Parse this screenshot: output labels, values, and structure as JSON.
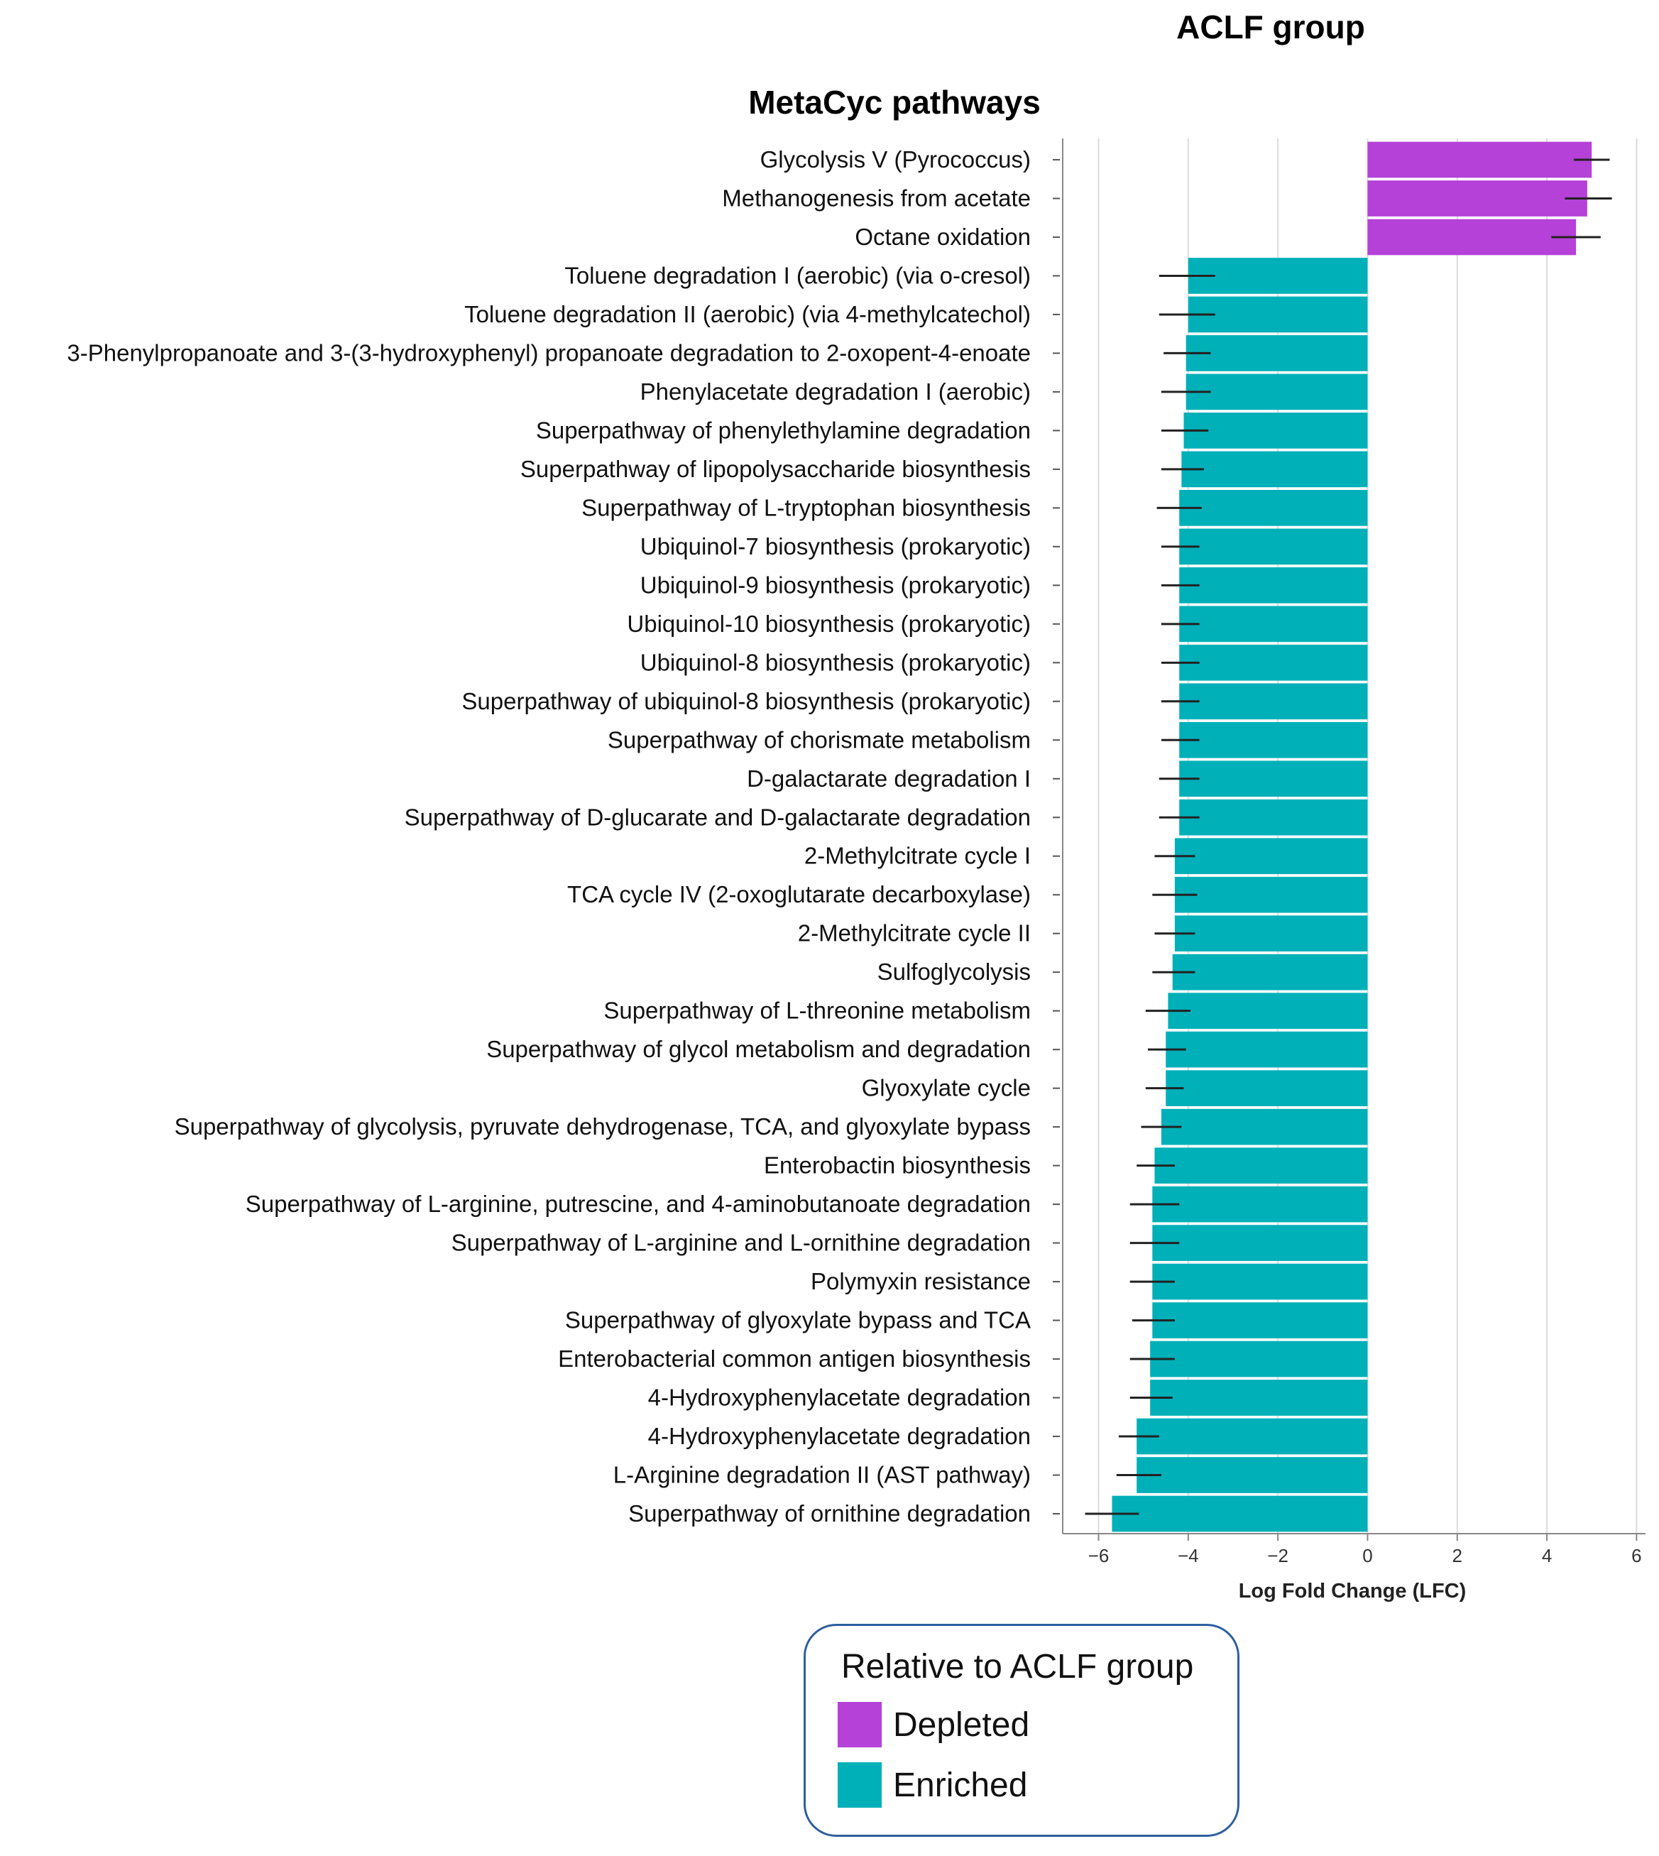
{
  "group_title": "ACLF group",
  "chart_data": {
    "type": "bar",
    "orientation": "horizontal",
    "title": "MetaCyc pathways",
    "xlabel": "Log Fold Change (LFC)",
    "ylabel": "",
    "xlim": [
      -6.8,
      6.2
    ],
    "xticks": [
      -6,
      -4,
      -2,
      0,
      2,
      4,
      6
    ],
    "xtick_labels": [
      "−6",
      "−4",
      "−2",
      "0",
      "2",
      "4",
      "6"
    ],
    "grid": true,
    "categories": [
      "Glycolysis V (Pyrococcus)",
      "Methanogenesis from acetate",
      "Octane oxidation",
      "Toluene degradation I (aerobic) (via o-cresol)",
      "Toluene degradation II (aerobic) (via 4-methylcatechol)",
      "3-Phenylpropanoate and 3-(3-hydroxyphenyl) propanoate degradation to 2-oxopent-4-enoate",
      "Phenylacetate degradation I (aerobic)",
      "Superpathway of phenylethylamine degradation",
      "Superpathway of lipopolysaccharide biosynthesis",
      "Superpathway of L-tryptophan biosynthesis",
      "Ubiquinol-7 biosynthesis (prokaryotic)",
      "Ubiquinol-9 biosynthesis (prokaryotic)",
      "Ubiquinol-10 biosynthesis (prokaryotic)",
      "Ubiquinol-8 biosynthesis (prokaryotic)",
      "Superpathway of ubiquinol-8 biosynthesis (prokaryotic)",
      "Superpathway of chorismate metabolism",
      "D-galactarate degradation I",
      "Superpathway of D-glucarate and D-galactarate degradation",
      "2-Methylcitrate cycle I",
      "TCA cycle IV (2-oxoglutarate decarboxylase)",
      "2-Methylcitrate cycle II",
      "Sulfoglycolysis",
      "Superpathway of L-threonine metabolism",
      "Superpathway of glycol metabolism and degradation",
      "Glyoxylate cycle",
      "Superpathway of glycolysis, pyruvate dehydrogenase, TCA, and glyoxylate bypass",
      "Enterobactin biosynthesis",
      "Superpathway of L-arginine, putrescine, and 4-aminobutanoate degradation",
      "Superpathway of L-arginine and L-ornithine degradation",
      "Polymyxin resistance",
      "Superpathway of glyoxylate bypass and TCA",
      "Enterobacterial common antigen biosynthesis",
      "4-Hydroxyphenylacetate degradation",
      "4-Hydroxyphenylacetate degradation",
      "L-Arginine degradation II (AST pathway)",
      "Superpathway of ornithine degradation"
    ],
    "values": [
      5.0,
      4.9,
      4.65,
      -4.0,
      -4.0,
      -4.05,
      -4.05,
      -4.1,
      -4.15,
      -4.2,
      -4.2,
      -4.2,
      -4.2,
      -4.2,
      -4.2,
      -4.2,
      -4.2,
      -4.2,
      -4.3,
      -4.3,
      -4.3,
      -4.35,
      -4.45,
      -4.5,
      -4.5,
      -4.6,
      -4.75,
      -4.8,
      -4.8,
      -4.8,
      -4.8,
      -4.85,
      -4.85,
      -5.15,
      -5.15,
      -5.7
    ],
    "error_low": [
      4.6,
      4.4,
      4.1,
      -4.65,
      -4.65,
      -4.55,
      -4.6,
      -4.6,
      -4.6,
      -4.7,
      -4.6,
      -4.6,
      -4.6,
      -4.6,
      -4.6,
      -4.6,
      -4.65,
      -4.65,
      -4.75,
      -4.8,
      -4.75,
      -4.8,
      -4.95,
      -4.9,
      -4.95,
      -5.05,
      -5.15,
      -5.3,
      -5.3,
      -5.3,
      -5.25,
      -5.3,
      -5.3,
      -5.55,
      -5.6,
      -6.3
    ],
    "error_high": [
      5.4,
      5.45,
      5.2,
      -3.4,
      -3.4,
      -3.5,
      -3.5,
      -3.55,
      -3.65,
      -3.7,
      -3.75,
      -3.75,
      -3.75,
      -3.75,
      -3.75,
      -3.75,
      -3.75,
      -3.75,
      -3.85,
      -3.8,
      -3.85,
      -3.85,
      -3.95,
      -4.05,
      -4.1,
      -4.15,
      -4.3,
      -4.2,
      -4.2,
      -4.3,
      -4.3,
      -4.3,
      -4.35,
      -4.65,
      -4.6,
      -5.1
    ],
    "colors": {
      "depleted": "#b541d8",
      "enriched": "#00b0b8"
    }
  },
  "legend": {
    "title": "Relative to ACLF group",
    "items": [
      {
        "label": "Depleted",
        "color": "#b541d8"
      },
      {
        "label": "Enriched",
        "color": "#00b0b8"
      }
    ]
  }
}
